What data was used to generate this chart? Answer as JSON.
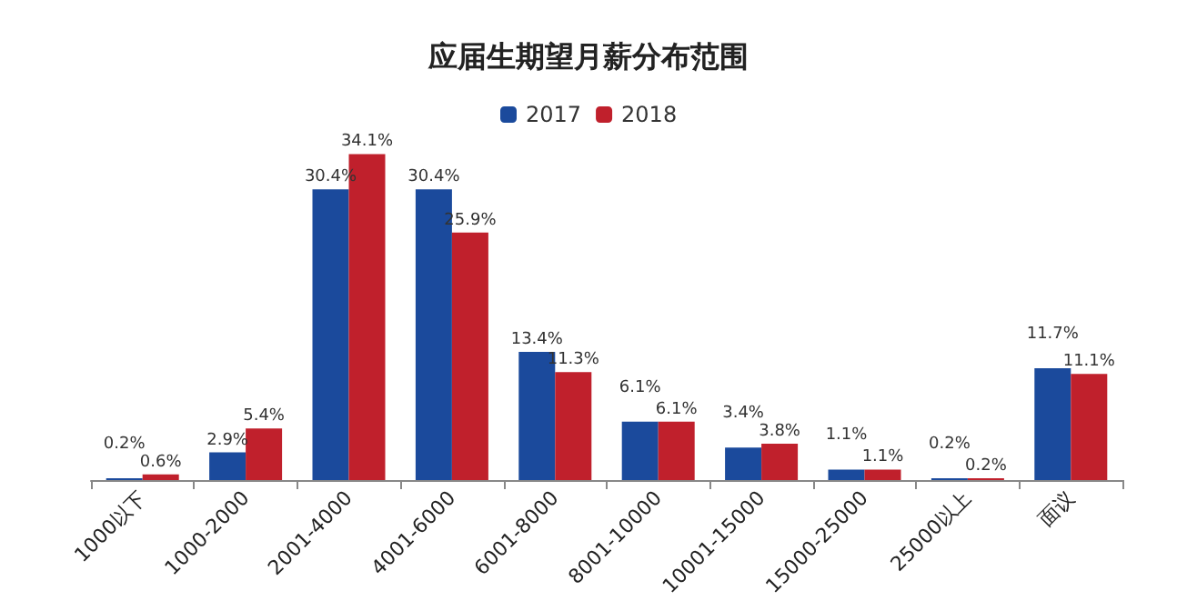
{
  "chart_data": {
    "type": "bar",
    "title": "应届生期望月薪分布范围",
    "categories": [
      "1000以下",
      "1000-2000",
      "2001-4000",
      "4001-6000",
      "6001-8000",
      "8001-10000",
      "10001-15000",
      "15000-25000",
      "25000以上",
      "面议"
    ],
    "series": [
      {
        "name": "2017",
        "color": "#1b4a9c",
        "values": [
          0.2,
          2.9,
          30.4,
          30.4,
          13.4,
          6.1,
          3.4,
          1.1,
          0.2,
          11.7
        ],
        "value_labels": [
          "0.2%",
          "2.9%",
          "30.4%",
          "30.4%",
          "13.4%",
          "6.1%",
          "3.4%",
          "1.1%",
          "0.2%",
          "11.7%"
        ]
      },
      {
        "name": "2018",
        "color": "#c0202c",
        "values": [
          0.6,
          5.4,
          34.1,
          25.9,
          11.3,
          6.1,
          3.8,
          1.1,
          0.2,
          11.1
        ],
        "value_labels": [
          "0.6%",
          "5.4%",
          "34.1%",
          "25.9%",
          "11.3%",
          "6.1%",
          "3.8%",
          "1.1%",
          "0.2%",
          "11.1%"
        ]
      }
    ],
    "legend": "top"
  }
}
